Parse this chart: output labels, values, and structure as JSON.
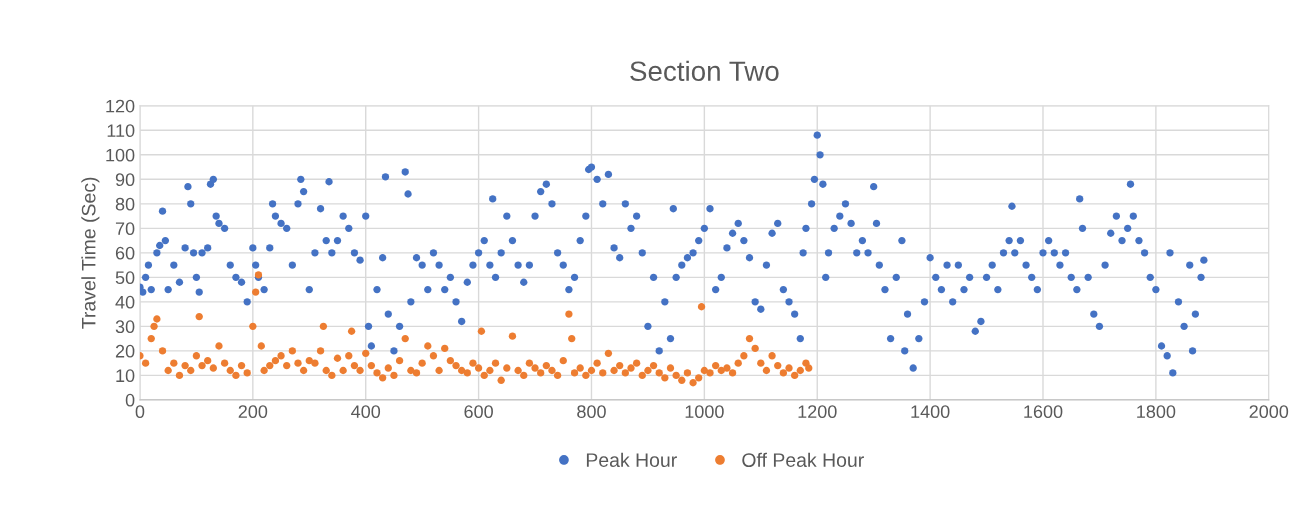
{
  "chart_data": {
    "type": "scatter",
    "title": "Section Two",
    "ylabel": "Travel Time (Sec)",
    "xlim": [
      0,
      2000
    ],
    "ylim": [
      0,
      120
    ],
    "xticks": [
      0,
      200,
      400,
      600,
      800,
      1000,
      1200,
      1400,
      1600,
      1800,
      2000
    ],
    "yticks": [
      0,
      10,
      20,
      30,
      40,
      50,
      60,
      70,
      80,
      90,
      100,
      110,
      120
    ],
    "grid": true,
    "legend": "bottom",
    "marker": "circle",
    "series": [
      {
        "name": "Peak Hour",
        "color": "#4472c4",
        "x": [
          0,
          5,
          10,
          15,
          20,
          30,
          35,
          40,
          45,
          50,
          60,
          70,
          80,
          85,
          90,
          95,
          100,
          105,
          110,
          120,
          125,
          130,
          135,
          140,
          150,
          160,
          170,
          180,
          190,
          200,
          205,
          210,
          220,
          230,
          235,
          240,
          250,
          260,
          270,
          280,
          285,
          290,
          300,
          310,
          320,
          330,
          335,
          340,
          350,
          360,
          370,
          380,
          390,
          400,
          405,
          410,
          420,
          430,
          435,
          440,
          450,
          460,
          470,
          475,
          480,
          490,
          500,
          510,
          520,
          530,
          540,
          550,
          560,
          570,
          580,
          590,
          600,
          610,
          620,
          625,
          630,
          640,
          650,
          660,
          670,
          680,
          690,
          700,
          710,
          720,
          730,
          740,
          750,
          760,
          770,
          780,
          790,
          795,
          800,
          810,
          820,
          830,
          840,
          850,
          860,
          870,
          880,
          890,
          900,
          910,
          920,
          930,
          940,
          945,
          950,
          960,
          970,
          980,
          990,
          1000,
          1010,
          1020,
          1030,
          1040,
          1050,
          1060,
          1070,
          1080,
          1090,
          1100,
          1110,
          1120,
          1130,
          1140,
          1150,
          1160,
          1170,
          1175,
          1180,
          1190,
          1195,
          1200,
          1205,
          1210,
          1215,
          1220,
          1230,
          1240,
          1250,
          1260,
          1270,
          1280,
          1290,
          1300,
          1305,
          1310,
          1320,
          1330,
          1340,
          1350,
          1355,
          1360,
          1370,
          1380,
          1390,
          1400,
          1410,
          1420,
          1430,
          1440,
          1450,
          1460,
          1470,
          1480,
          1490,
          1500,
          1510,
          1520,
          1530,
          1540,
          1545,
          1550,
          1560,
          1570,
          1580,
          1590,
          1600,
          1610,
          1620,
          1630,
          1640,
          1650,
          1660,
          1665,
          1670,
          1680,
          1690,
          1700,
          1710,
          1720,
          1730,
          1740,
          1750,
          1755,
          1760,
          1770,
          1780,
          1790,
          1800,
          1810,
          1820,
          1825,
          1830,
          1840,
          1850,
          1860,
          1865,
          1870,
          1880,
          1885
        ],
        "values": [
          46,
          44,
          50,
          55,
          45,
          60,
          63,
          77,
          65,
          45,
          55,
          48,
          62,
          87,
          80,
          60,
          50,
          44,
          60,
          62,
          88,
          90,
          75,
          72,
          70,
          55,
          50,
          48,
          40,
          62,
          55,
          50,
          45,
          62,
          80,
          75,
          72,
          70,
          55,
          80,
          90,
          85,
          45,
          60,
          78,
          65,
          89,
          60,
          65,
          75,
          70,
          60,
          57,
          75,
          30,
          22,
          45,
          58,
          91,
          35,
          20,
          30,
          93,
          84,
          40,
          58,
          55,
          45,
          60,
          55,
          45,
          50,
          40,
          32,
          48,
          55,
          60,
          65,
          55,
          82,
          50,
          60,
          75,
          65,
          55,
          48,
          55,
          75,
          85,
          88,
          80,
          60,
          55,
          45,
          50,
          65,
          75,
          94,
          95,
          90,
          80,
          92,
          62,
          58,
          80,
          70,
          75,
          60,
          30,
          50,
          20,
          40,
          25,
          78,
          50,
          55,
          58,
          60,
          65,
          70,
          78,
          45,
          50,
          62,
          68,
          72,
          65,
          58,
          40,
          37,
          55,
          68,
          72,
          45,
          40,
          35,
          25,
          60,
          70,
          80,
          90,
          108,
          100,
          88,
          50,
          60,
          70,
          75,
          80,
          72,
          60,
          65,
          60,
          87,
          72,
          55,
          45,
          25,
          50,
          65,
          20,
          35,
          13,
          25,
          40,
          58,
          50,
          45,
          55,
          40,
          55,
          45,
          50,
          28,
          32,
          50,
          55,
          45,
          60,
          65,
          79,
          60,
          65,
          55,
          50,
          45,
          60,
          65,
          60,
          55,
          60,
          50,
          45,
          82,
          70,
          50,
          35,
          30,
          55,
          68,
          75,
          65,
          70,
          88,
          75,
          65,
          60,
          50,
          45,
          22,
          18,
          60,
          11,
          40,
          30,
          55,
          20,
          35,
          50,
          57
        ]
      },
      {
        "name": "Off Peak Hour",
        "color": "#ed7d31",
        "x": [
          0,
          10,
          20,
          25,
          30,
          40,
          50,
          60,
          70,
          80,
          90,
          100,
          105,
          110,
          120,
          130,
          140,
          150,
          160,
          170,
          180,
          190,
          200,
          205,
          210,
          215,
          220,
          230,
          240,
          250,
          260,
          270,
          280,
          290,
          300,
          310,
          320,
          325,
          330,
          340,
          350,
          360,
          370,
          375,
          380,
          390,
          400,
          410,
          420,
          430,
          440,
          450,
          460,
          470,
          480,
          490,
          500,
          510,
          520,
          530,
          540,
          550,
          560,
          570,
          580,
          590,
          600,
          605,
          610,
          620,
          630,
          640,
          650,
          660,
          670,
          680,
          690,
          700,
          710,
          720,
          730,
          740,
          750,
          760,
          765,
          770,
          780,
          790,
          800,
          810,
          820,
          830,
          840,
          850,
          860,
          870,
          880,
          890,
          900,
          910,
          920,
          930,
          940,
          950,
          960,
          970,
          980,
          990,
          995,
          1000,
          1010,
          1020,
          1030,
          1040,
          1050,
          1060,
          1070,
          1080,
          1090,
          1100,
          1110,
          1120,
          1130,
          1140,
          1150,
          1160,
          1170,
          1180,
          1185
        ],
        "values": [
          18,
          15,
          25,
          30,
          33,
          20,
          12,
          15,
          10,
          14,
          12,
          18,
          34,
          14,
          16,
          13,
          22,
          15,
          12,
          10,
          14,
          11,
          30,
          44,
          51,
          22,
          12,
          14,
          16,
          18,
          14,
          20,
          15,
          12,
          16,
          15,
          20,
          30,
          12,
          10,
          17,
          12,
          18,
          28,
          14,
          12,
          19,
          14,
          11,
          9,
          13,
          10,
          16,
          25,
          12,
          11,
          15,
          22,
          18,
          12,
          21,
          16,
          14,
          12,
          11,
          15,
          13,
          28,
          10,
          12,
          15,
          8,
          13,
          26,
          12,
          10,
          15,
          13,
          11,
          14,
          12,
          10,
          16,
          35,
          25,
          11,
          13,
          10,
          12,
          15,
          11,
          19,
          12,
          14,
          11,
          13,
          15,
          10,
          12,
          14,
          11,
          9,
          13,
          10,
          8,
          11,
          7,
          9,
          38,
          12,
          11,
          14,
          12,
          13,
          11,
          15,
          18,
          25,
          21,
          15,
          12,
          18,
          14,
          11,
          13,
          10,
          12,
          15,
          13
        ]
      }
    ]
  }
}
